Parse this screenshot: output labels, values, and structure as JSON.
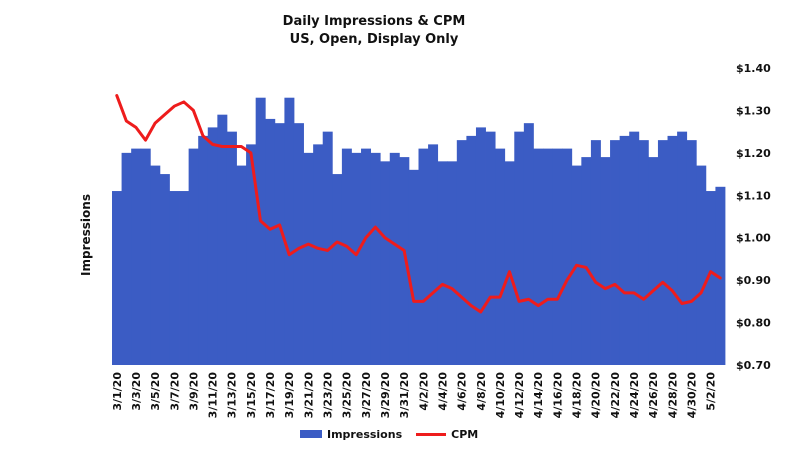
{
  "chart_data": {
    "type": "bar+line",
    "title": "Daily Impressions & CPM",
    "subtitle": "US, Open, Display Only",
    "ylabel_left": "Impressions",
    "ylabel_right": "",
    "y_right_ticks": [
      "$1.40",
      "$1.30",
      "$1.20",
      "$1.10",
      "$1.00",
      "$0.90",
      "$0.80",
      "$0.70"
    ],
    "y_right_lim": [
      0.7,
      1.4
    ],
    "x_tick_labels": [
      "3/1/20",
      "3/3/20",
      "3/5/20",
      "3/7/20",
      "3/9/20",
      "3/11/20",
      "3/13/20",
      "3/15/20",
      "3/17/20",
      "3/19/20",
      "3/21/20",
      "3/23/20",
      "3/25/20",
      "3/27/20",
      "3/29/20",
      "3/31/20",
      "4/2/20",
      "4/4/20",
      "4/6/20",
      "4/8/20",
      "4/10/20",
      "4/12/20",
      "4/14/20",
      "4/16/20",
      "4/18/20",
      "4/20/20",
      "4/22/20",
      "4/24/20",
      "4/26/20",
      "4/28/20",
      "4/30/20",
      "5/2/20"
    ],
    "grid": false,
    "legend_position": "bottom",
    "series": [
      {
        "name": "Impressions",
        "kind": "bar",
        "color": "#3b5cc4",
        "values": [
          1.11,
          1.2,
          1.21,
          1.21,
          1.17,
          1.15,
          1.11,
          1.11,
          1.21,
          1.24,
          1.26,
          1.29,
          1.25,
          1.17,
          1.22,
          1.33,
          1.28,
          1.27,
          1.33,
          1.27,
          1.2,
          1.22,
          1.25,
          1.15,
          1.21,
          1.2,
          1.21,
          1.2,
          1.18,
          1.2,
          1.19,
          1.16,
          1.21,
          1.22,
          1.18,
          1.18,
          1.23,
          1.24,
          1.26,
          1.25,
          1.21,
          1.18,
          1.25,
          1.27,
          1.21,
          1.21,
          1.21,
          1.21,
          1.17,
          1.19,
          1.23,
          1.19,
          1.23,
          1.24,
          1.25,
          1.23,
          1.19,
          1.23,
          1.24,
          1.25,
          1.23,
          1.17,
          1.11,
          1.12
        ]
      },
      {
        "name": "CPM",
        "kind": "line",
        "color": "#ee1c1c",
        "values": [
          1.335,
          1.275,
          1.26,
          1.23,
          1.27,
          1.29,
          1.31,
          1.32,
          1.3,
          1.24,
          1.22,
          1.215,
          1.215,
          1.215,
          1.2,
          1.04,
          1.02,
          1.03,
          0.96,
          0.975,
          0.985,
          0.975,
          0.97,
          0.99,
          0.98,
          0.96,
          1.0,
          1.025,
          1.0,
          0.985,
          0.97,
          0.85,
          0.85,
          0.87,
          0.89,
          0.88,
          0.86,
          0.84,
          0.825,
          0.86,
          0.86,
          0.92,
          0.85,
          0.855,
          0.84,
          0.855,
          0.855,
          0.9,
          0.935,
          0.93,
          0.895,
          0.88,
          0.89,
          0.87,
          0.87,
          0.855,
          0.875,
          0.895,
          0.875,
          0.845,
          0.85,
          0.87,
          0.92,
          0.905
        ]
      }
    ]
  }
}
